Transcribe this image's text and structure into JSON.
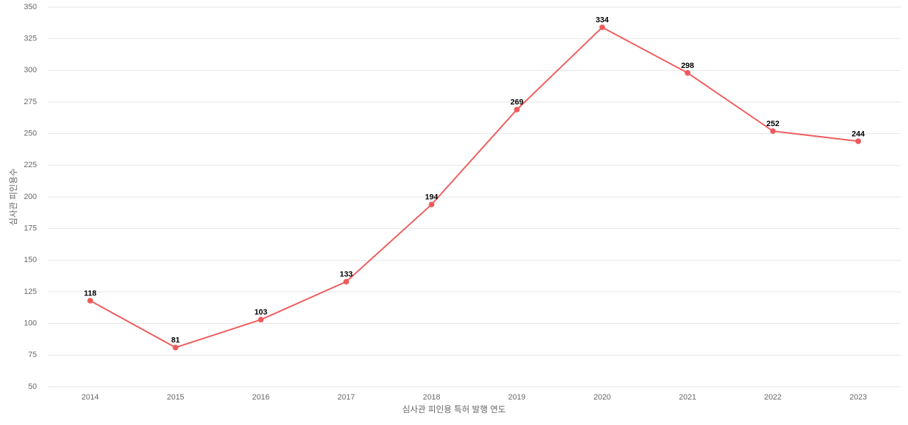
{
  "chart_data": {
    "type": "line",
    "x_label": "심사관 피인용 특허 발행 연도",
    "y_label": "심사관 피인용수",
    "categories": [
      "2014",
      "2015",
      "2016",
      "2017",
      "2018",
      "2019",
      "2020",
      "2021",
      "2022",
      "2023"
    ],
    "values": [
      118,
      81,
      103,
      133,
      194,
      269,
      334,
      298,
      252,
      244
    ],
    "color": "#ef5b5b",
    "ylim": [
      50,
      350
    ],
    "yticks": [
      50,
      75,
      100,
      125,
      150,
      175,
      200,
      225,
      250,
      275,
      300,
      325,
      350
    ],
    "grid": true
  }
}
